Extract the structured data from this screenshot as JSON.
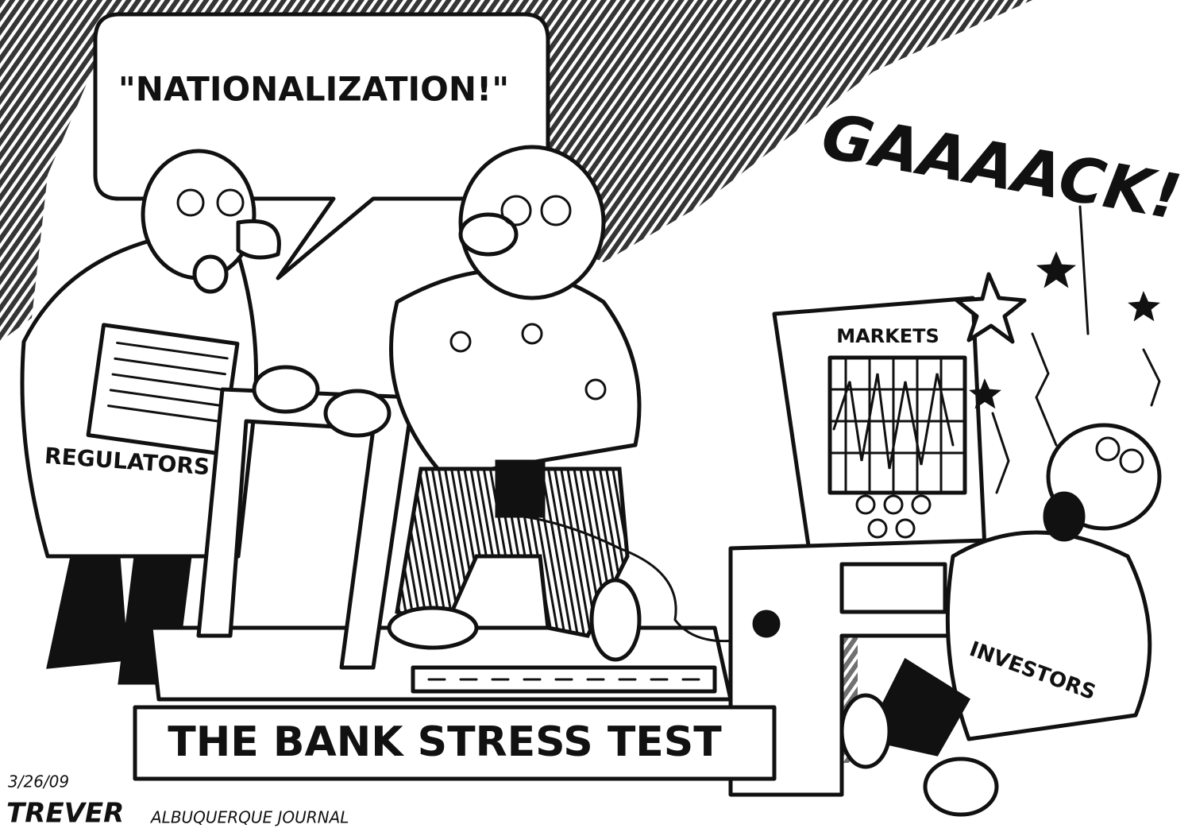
{
  "cartoon": {
    "speech_bubble": "\"NATIONALIZATION!\"",
    "exclamation": "GAAAACK!",
    "labels": {
      "regulators": "REGULATORS",
      "markets": "MARKETS",
      "investors": "INVESTORS",
      "banner": "THE BANK STRESS TEST"
    },
    "signature": {
      "date": "3/26/09",
      "artist": "TREVER",
      "newspaper": "ALBUQUERQUE JOURNAL"
    }
  }
}
